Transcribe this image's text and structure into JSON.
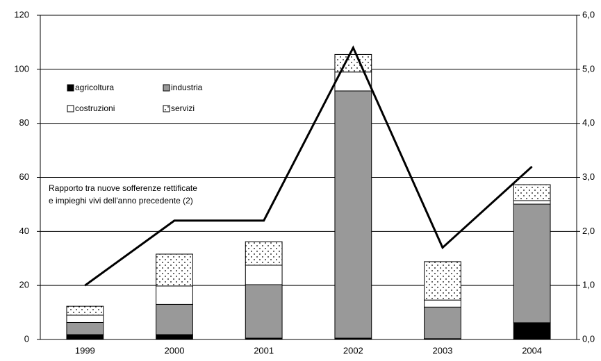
{
  "chart_data": {
    "type": "bar",
    "categories": [
      "1999",
      "2000",
      "2001",
      "2002",
      "2003",
      "2004"
    ],
    "series": [
      {
        "name": "agricoltura",
        "color": "#000000",
        "values": [
          1.8,
          1.8,
          0.5,
          0.5,
          0.3,
          6.2
        ]
      },
      {
        "name": "industria",
        "color": "#999999",
        "values": [
          4.5,
          11.2,
          19.8,
          91.5,
          11.7,
          43.9
        ]
      },
      {
        "name": "costruzioni",
        "color": "#ffffff",
        "values": [
          2.7,
          6.8,
          7.2,
          7.0,
          2.6,
          1.3
        ]
      },
      {
        "name": "servizi",
        "color": "#ffffff",
        "pattern": "dots",
        "values": [
          3.3,
          11.8,
          8.7,
          6.5,
          14.2,
          5.9
        ]
      },
      {
        "type": "line",
        "axis": "y2",
        "color": "#000000",
        "values": [
          1.0,
          2.2,
          2.2,
          5.4,
          1.7,
          3.2
        ]
      }
    ],
    "annotation": [
      "Rapporto tra nuove sofferenze rettificate",
      "e impieghi vivi dell'anno precedente (2)"
    ],
    "ylim": [
      0,
      120
    ],
    "yticks": [
      0,
      20,
      40,
      60,
      80,
      100,
      120
    ],
    "y2lim": [
      0,
      6
    ],
    "y2ticks": [
      {
        "value": 0,
        "label": "0,0"
      },
      {
        "value": 1,
        "label": "1,0"
      },
      {
        "value": 2,
        "label": "2,0"
      },
      {
        "value": 3,
        "label": "3,0"
      },
      {
        "value": 4,
        "label": "4,0"
      },
      {
        "value": 5,
        "label": "5,0"
      },
      {
        "value": 6,
        "label": "6,0"
      }
    ],
    "grid": true,
    "legend": "upper left"
  }
}
